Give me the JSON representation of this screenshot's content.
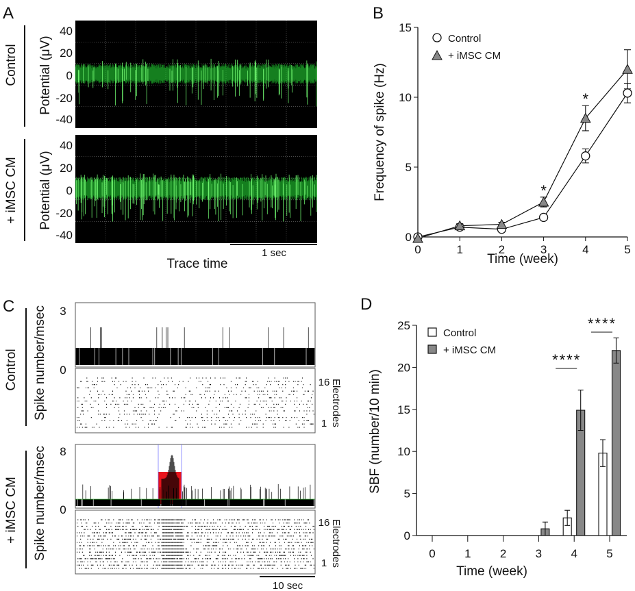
{
  "panels": {
    "A": {
      "letter": "A",
      "groups": [
        "Control",
        "+ iMSC CM"
      ],
      "ylabel": "Potential (μV)",
      "yticks": [
        "40",
        "20",
        "0",
        "-20",
        "-40"
      ],
      "xlabel": "Trace time",
      "scalebar": "1 sec",
      "trace_color": "#22c832"
    },
    "C": {
      "letter": "C",
      "groups": [
        "Control",
        "+ iMSC CM"
      ],
      "ylabel": "Spike number/msec",
      "control_yticks": [
        "3",
        "0"
      ],
      "imsc_yticks": [
        "8",
        "0"
      ],
      "electrode_top": "16",
      "electrode_bottom": "1",
      "electrode_label": "Electrodes",
      "scalebar": "10 sec",
      "burst_color": "#e8141c"
    },
    "B": {
      "letter": "B"
    },
    "D": {
      "letter": "D"
    }
  },
  "chart_data": [
    {
      "panel": "B",
      "type": "line",
      "xlabel": "Time (week)",
      "ylabel": "Frequency of spike (Hz)",
      "x": [
        0,
        1,
        2,
        3,
        4,
        5
      ],
      "xticks": [
        "0",
        "1",
        "2",
        "3",
        "4",
        "5"
      ],
      "yticks": [
        "0",
        "5",
        "10",
        "15"
      ],
      "ylim": [
        0,
        15
      ],
      "legend": "top-left",
      "series": [
        {
          "name": "Control",
          "marker": "circle",
          "color": "#ffffff",
          "values": [
            0,
            0.7,
            0.55,
            1.4,
            5.8,
            10.3
          ],
          "errors": [
            0.1,
            0.2,
            0.1,
            0.15,
            0.5,
            0.7
          ]
        },
        {
          "name": "+ iMSC CM",
          "marker": "triangle",
          "color": "#888888",
          "values": [
            -0.1,
            0.8,
            0.9,
            2.5,
            8.5,
            12.0
          ],
          "errors": [
            0.1,
            0.15,
            0.15,
            0.35,
            0.9,
            1.4
          ]
        }
      ],
      "annotations": [
        {
          "x": 3,
          "text": "*"
        },
        {
          "x": 4,
          "text": "*"
        }
      ]
    },
    {
      "panel": "D",
      "type": "bar",
      "xlabel": "Time (week)",
      "ylabel": "SBF (number/10 min)",
      "categories": [
        "0",
        "1",
        "2",
        "3",
        "4",
        "5"
      ],
      "yticks": [
        "0",
        "5",
        "10",
        "15",
        "20",
        "25"
      ],
      "ylim": [
        0,
        25
      ],
      "legend": "top-left",
      "series": [
        {
          "name": "Control",
          "color": "#ffffff",
          "values": [
            0,
            0,
            0,
            0,
            2.1,
            9.8
          ],
          "errors": [
            0,
            0,
            0,
            0,
            0.9,
            1.6
          ]
        },
        {
          "name": "+ iMSC CM",
          "color": "#888888",
          "values": [
            0,
            0,
            0,
            0.8,
            14.9,
            22.0
          ],
          "errors": [
            0,
            0,
            0,
            0.8,
            2.4,
            1.5
          ]
        }
      ],
      "annotations": [
        {
          "x": 4,
          "text": "****"
        },
        {
          "x": 5,
          "text": "****"
        }
      ]
    }
  ]
}
